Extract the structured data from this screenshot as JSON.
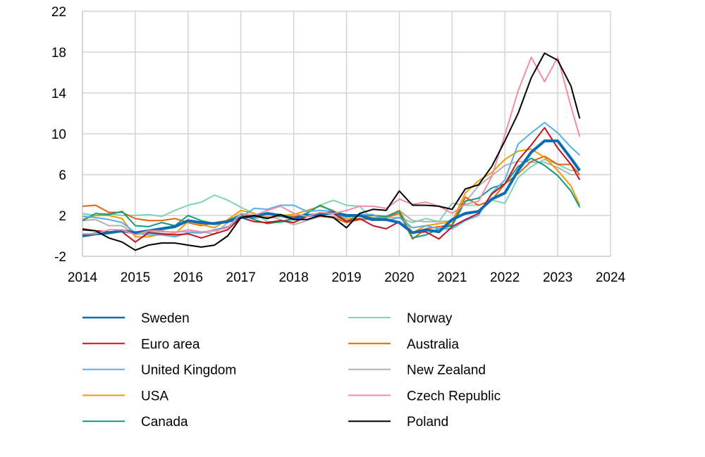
{
  "chart_data": {
    "type": "line",
    "title": "",
    "xlabel": "",
    "ylabel": "",
    "xlim": [
      2014,
      2024
    ],
    "ylim": [
      -2,
      22
    ],
    "x_ticks": [
      "2014",
      "2015",
      "2016",
      "2017",
      "2018",
      "2019",
      "2020",
      "2021",
      "2022",
      "2023",
      "2024"
    ],
    "y_ticks": [
      "-2",
      "2",
      "6",
      "10",
      "14",
      "18",
      "22"
    ],
    "grid": true,
    "legend_position": "bottom",
    "x": [
      "2014-01",
      "2014-04",
      "2014-07",
      "2014-10",
      "2015-01",
      "2015-04",
      "2015-07",
      "2015-10",
      "2016-01",
      "2016-04",
      "2016-07",
      "2016-10",
      "2017-01",
      "2017-04",
      "2017-07",
      "2017-10",
      "2018-01",
      "2018-04",
      "2018-07",
      "2018-10",
      "2019-01",
      "2019-04",
      "2019-07",
      "2019-10",
      "2020-01",
      "2020-04",
      "2020-07",
      "2020-10",
      "2021-01",
      "2021-04",
      "2021-07",
      "2021-10",
      "2022-01",
      "2022-04",
      "2022-07",
      "2022-10",
      "2023-01",
      "2023-04",
      "2023-06"
    ],
    "series": [
      {
        "name": "Sweden",
        "color": "#0a6cb4",
        "thick": true,
        "values": [
          0.0,
          0.2,
          0.3,
          0.5,
          0.3,
          0.5,
          0.7,
          0.9,
          1.5,
          1.3,
          1.2,
          1.4,
          1.8,
          1.9,
          2.2,
          2.0,
          1.7,
          2.0,
          2.1,
          2.3,
          2.0,
          2.0,
          1.6,
          1.6,
          1.3,
          0.3,
          0.6,
          0.4,
          1.6,
          2.2,
          2.4,
          3.6,
          4.2,
          6.4,
          8.2,
          9.3,
          9.3,
          7.6,
          6.4
        ]
      },
      {
        "name": "Euro area",
        "color": "#c0141e",
        "values": [
          0.7,
          0.5,
          0.4,
          0.4,
          -0.6,
          0.3,
          0.2,
          0.1,
          0.2,
          -0.2,
          0.2,
          0.6,
          1.8,
          1.4,
          1.3,
          1.5,
          1.3,
          1.9,
          2.1,
          2.2,
          1.4,
          1.7,
          1.0,
          0.7,
          1.4,
          0.3,
          0.4,
          -0.3,
          0.9,
          1.6,
          2.2,
          4.1,
          5.1,
          7.4,
          8.9,
          10.6,
          8.6,
          7.0,
          5.5
        ]
      },
      {
        "name": "United Kingdom",
        "color": "#55aef0",
        "values": [
          1.9,
          1.8,
          1.6,
          1.3,
          0.3,
          0.1,
          0.1,
          -0.1,
          0.3,
          0.3,
          0.6,
          0.9,
          1.8,
          2.7,
          2.6,
          3.0,
          3.0,
          2.4,
          2.5,
          2.4,
          1.8,
          2.1,
          2.1,
          1.5,
          1.8,
          0.8,
          1.0,
          0.7,
          0.7,
          1.5,
          2.0,
          4.2,
          5.5,
          9.0,
          10.1,
          11.1,
          10.1,
          8.7,
          7.9
        ]
      },
      {
        "name": "USA",
        "color": "#f29a00",
        "values": [
          1.6,
          2.0,
          2.0,
          1.7,
          -0.1,
          -0.1,
          0.2,
          0.2,
          1.4,
          1.1,
          0.8,
          1.6,
          2.5,
          2.2,
          1.7,
          2.0,
          2.1,
          2.5,
          2.9,
          2.5,
          1.6,
          2.0,
          1.8,
          1.8,
          2.5,
          0.3,
          1.0,
          1.2,
          1.4,
          4.2,
          5.4,
          6.2,
          7.5,
          8.3,
          8.5,
          7.7,
          6.4,
          4.9,
          3.0
        ]
      },
      {
        "name": "Canada",
        "color": "#109a86",
        "values": [
          1.5,
          2.2,
          2.1,
          2.4,
          1.0,
          0.9,
          1.3,
          1.0,
          2.0,
          1.5,
          1.2,
          1.5,
          2.1,
          1.6,
          1.2,
          1.4,
          1.7,
          2.2,
          3.0,
          2.4,
          1.4,
          2.0,
          2.0,
          1.9,
          2.4,
          -0.2,
          0.1,
          0.7,
          1.0,
          3.4,
          3.7,
          4.7,
          5.1,
          6.8,
          7.6,
          6.9,
          5.9,
          4.4,
          2.8
        ]
      },
      {
        "name": "Norway",
        "color": "#7fd3b2",
        "values": [
          2.2,
          2.0,
          2.2,
          2.0,
          2.0,
          2.1,
          1.9,
          2.5,
          3.0,
          3.3,
          4.0,
          3.5,
          2.8,
          2.2,
          1.4,
          1.3,
          1.6,
          2.3,
          3.0,
          3.5,
          3.0,
          2.9,
          1.6,
          1.8,
          1.8,
          1.3,
          1.7,
          1.4,
          3.2,
          3.0,
          3.0,
          3.5,
          3.2,
          5.7,
          6.8,
          7.5,
          7.0,
          6.4,
          6.4
        ]
      },
      {
        "name": "Australia",
        "color": "#e8620a",
        "values": [
          2.9,
          3.0,
          2.3,
          2.3,
          1.7,
          1.5,
          1.5,
          1.7,
          1.3,
          1.0,
          1.3,
          1.5,
          2.1,
          1.9,
          1.8,
          1.9,
          1.9,
          2.1,
          1.9,
          1.8,
          1.3,
          1.6,
          1.7,
          1.8,
          2.2,
          -0.3,
          0.7,
          0.9,
          1.1,
          3.8,
          3.0,
          3.5,
          5.1,
          6.1,
          7.3,
          7.8,
          7.0,
          7.0,
          6.0
        ]
      },
      {
        "name": "New Zealand",
        "color": "#b0b0b4",
        "values": [
          1.5,
          1.6,
          1.0,
          1.0,
          0.1,
          0.3,
          0.4,
          0.4,
          0.4,
          0.4,
          0.2,
          1.3,
          2.2,
          1.7,
          1.9,
          1.6,
          1.1,
          1.5,
          1.9,
          1.9,
          1.5,
          1.7,
          1.5,
          1.9,
          2.5,
          1.5,
          1.4,
          1.4,
          1.5,
          3.3,
          4.9,
          5.9,
          6.9,
          7.3,
          7.2,
          7.2,
          6.7,
          6.0,
          6.0
        ]
      },
      {
        "name": "Czech Republic",
        "color": "#f28ea0",
        "values": [
          0.2,
          0.2,
          0.6,
          0.6,
          0.1,
          0.5,
          0.5,
          0.3,
          0.6,
          0.4,
          0.5,
          0.8,
          2.2,
          2.0,
          2.5,
          2.9,
          2.2,
          1.9,
          2.3,
          2.2,
          2.5,
          2.9,
          2.9,
          2.7,
          3.6,
          3.1,
          3.3,
          2.9,
          2.2,
          3.1,
          3.4,
          5.8,
          9.9,
          14.2,
          17.5,
          15.1,
          17.5,
          12.7,
          9.7
        ]
      },
      {
        "name": "Poland",
        "color": "#000000",
        "values": [
          0.6,
          0.5,
          -0.2,
          -0.6,
          -1.4,
          -0.9,
          -0.7,
          -0.7,
          -0.9,
          -1.1,
          -0.9,
          0.0,
          1.8,
          2.0,
          1.7,
          2.1,
          1.6,
          1.6,
          2.0,
          1.8,
          0.8,
          2.2,
          2.6,
          2.5,
          4.4,
          3.0,
          3.0,
          2.9,
          2.6,
          4.6,
          5.0,
          6.8,
          9.3,
          12.0,
          15.5,
          17.9,
          17.2,
          14.7,
          11.5
        ]
      }
    ]
  }
}
